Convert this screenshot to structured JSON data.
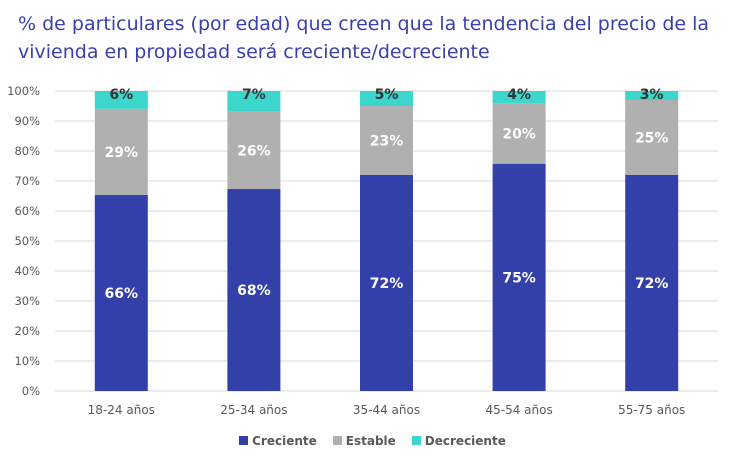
{
  "chart_data": {
    "type": "bar",
    "stacked": true,
    "title": "% de particulares (por edad) que creen que la tendencia del precio de la vivienda en propiedad será creciente/decreciente",
    "categories": [
      "18-24 años",
      "25-34 años",
      "35-44 años",
      "45-54 años",
      "55-75 años"
    ],
    "series": [
      {
        "name": "Creciente",
        "values": [
          66,
          68,
          72,
          75,
          72
        ],
        "color": "#3340AA"
      },
      {
        "name": "Estable",
        "values": [
          29,
          26,
          23,
          20,
          25
        ],
        "color": "#B0B0B0"
      },
      {
        "name": "Decreciente",
        "values": [
          6,
          7,
          5,
          4,
          3
        ],
        "color": "#3DD6CC"
      }
    ],
    "yticks": [
      "0%",
      "10%",
      "20%",
      "30%",
      "40%",
      "50%",
      "60%",
      "70%",
      "80%",
      "90%",
      "100%"
    ],
    "ylim": [
      0,
      100
    ],
    "grid": true,
    "legend": "bottom"
  }
}
